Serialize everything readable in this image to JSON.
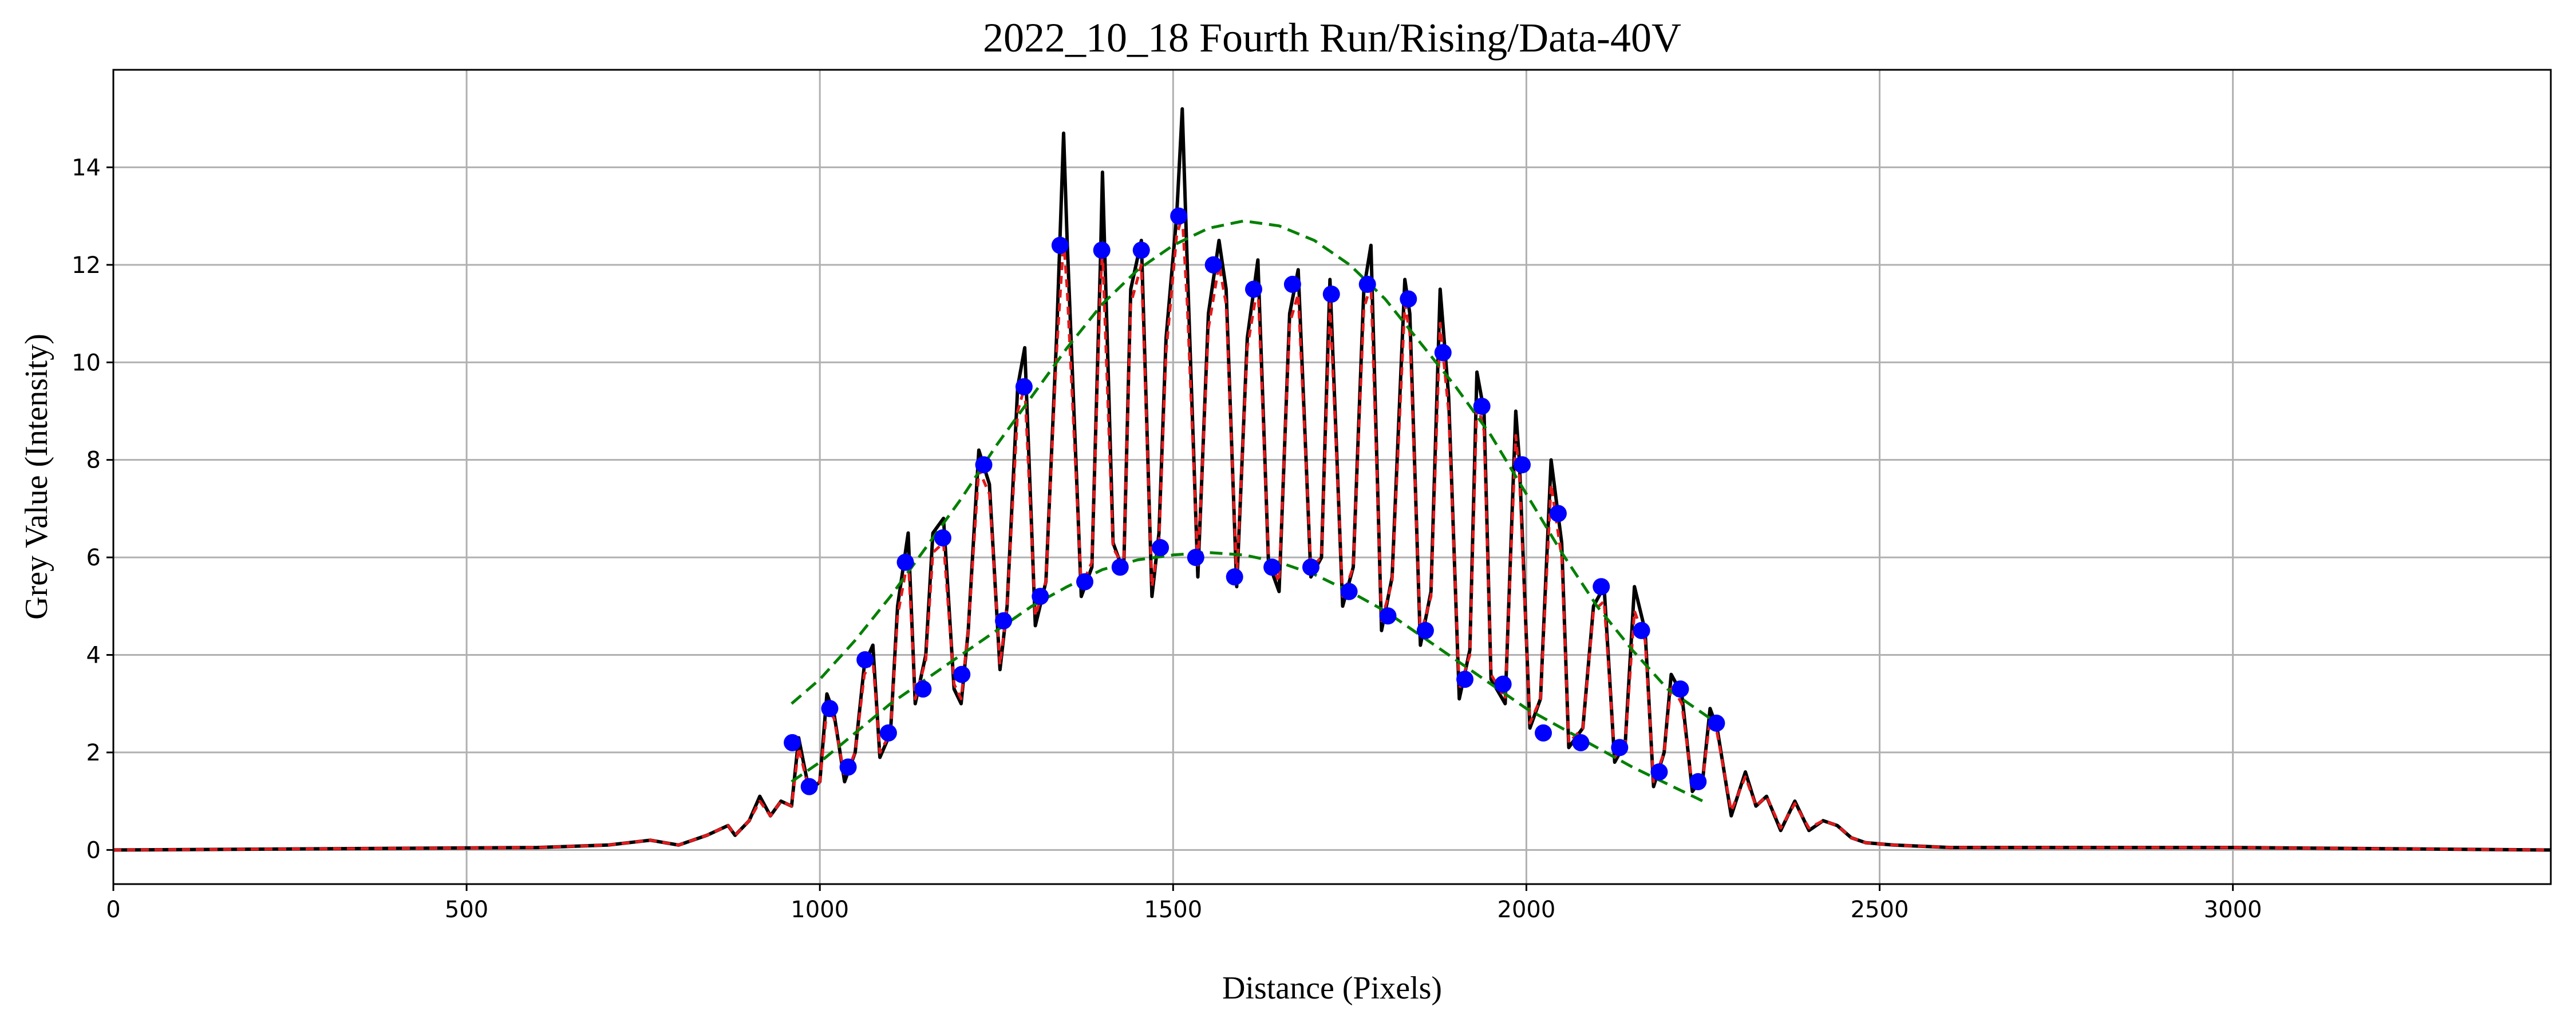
{
  "chart_data": {
    "type": "line",
    "title": "2022_10_18 Fourth Run/Rising/Data-40V",
    "xlabel": "Distance (Pixels)",
    "ylabel": "Grey Value (Intensity)",
    "xlim": [
      0,
      3450
    ],
    "ylim": [
      -0.7,
      16
    ],
    "grid": true,
    "x_ticks": [
      0,
      500,
      1000,
      1500,
      2000,
      2500,
      3000
    ],
    "y_ticks": [
      0,
      2,
      4,
      6,
      8,
      10,
      12,
      14
    ],
    "colors": {
      "raw": "#000000",
      "smoothed": "#e41a1c",
      "fit": "#008000",
      "peaks": "#0000ff",
      "grid": "#b0b0b0"
    },
    "series": [
      {
        "type": "line",
        "x": [
          0,
          600,
          700,
          760,
          800,
          840,
          870,
          880,
          900,
          915,
          930,
          945,
          960,
          970,
          985,
          1000,
          1010,
          1020,
          1035,
          1050,
          1063,
          1075,
          1085,
          1100,
          1110,
          1125,
          1135,
          1150,
          1160,
          1175,
          1190,
          1200,
          1210,
          1225,
          1240,
          1255,
          1265,
          1280,
          1290,
          1305,
          1320,
          1335,
          1345,
          1350,
          1370,
          1385,
          1397,
          1400,
          1415,
          1430,
          1440,
          1455,
          1470,
          1480,
          1490,
          1505,
          1513,
          1520,
          1535,
          1550,
          1565,
          1575,
          1590,
          1605,
          1620,
          1635,
          1650,
          1665,
          1677,
          1695,
          1710,
          1722,
          1740,
          1755,
          1770,
          1780,
          1795,
          1810,
          1828,
          1835,
          1850,
          1865,
          1878,
          1890,
          1905,
          1920,
          1930,
          1940,
          1950,
          1970,
          1985,
          1990,
          2005,
          2020,
          2035,
          2050,
          2060,
          2080,
          2095,
          2110,
          2125,
          2140,
          2153,
          2168,
          2180,
          2195,
          2205,
          2220,
          2235,
          2250,
          2260,
          2270,
          2290,
          2310,
          2325,
          2340,
          2360,
          2380,
          2400,
          2420,
          2440,
          2460,
          2480,
          2520,
          2600,
          3000,
          3450
        ],
        "y": [
          0,
          0.05,
          0.1,
          0.2,
          0.1,
          0.3,
          0.5,
          0.3,
          0.6,
          1.1,
          0.7,
          1.0,
          0.9,
          2.3,
          1.2,
          1.4,
          3.2,
          2.8,
          1.4,
          2.0,
          3.8,
          4.2,
          1.9,
          2.4,
          5.0,
          6.5,
          3.0,
          4.0,
          6.5,
          6.8,
          3.3,
          3.0,
          4.5,
          8.2,
          7.5,
          3.7,
          5.0,
          9.5,
          10.3,
          4.6,
          5.5,
          10.5,
          14.7,
          12.5,
          5.2,
          5.8,
          12.0,
          13.9,
          6.3,
          5.7,
          11.5,
          12.5,
          5.2,
          6.5,
          10.5,
          13.0,
          15.2,
          12.0,
          5.6,
          11.0,
          12.5,
          11.5,
          5.4,
          10.5,
          12.1,
          5.9,
          5.3,
          11.0,
          11.9,
          5.6,
          6.0,
          11.7,
          5.0,
          5.8,
          11.5,
          12.4,
          4.5,
          5.6,
          11.7,
          11.0,
          4.2,
          5.3,
          11.5,
          9.3,
          3.1,
          4.1,
          9.8,
          9.0,
          3.5,
          3.0,
          9.0,
          8.0,
          2.5,
          3.1,
          8.0,
          6.3,
          2.1,
          2.5,
          5.0,
          5.4,
          1.8,
          2.2,
          5.4,
          4.5,
          1.3,
          2.0,
          3.6,
          3.2,
          1.2,
          1.5,
          2.9,
          2.5,
          0.7,
          1.6,
          0.9,
          1.1,
          0.4,
          1.0,
          0.4,
          0.6,
          0.5,
          0.25,
          0.15,
          0.1,
          0.05,
          0.05,
          0
        ]
      },
      {
        "type": "line",
        "x": [
          0,
          600,
          700,
          760,
          800,
          840,
          870,
          880,
          900,
          915,
          930,
          945,
          960,
          970,
          985,
          1000,
          1010,
          1020,
          1035,
          1050,
          1063,
          1075,
          1085,
          1100,
          1110,
          1125,
          1135,
          1150,
          1160,
          1175,
          1190,
          1200,
          1210,
          1225,
          1240,
          1255,
          1265,
          1280,
          1290,
          1305,
          1320,
          1335,
          1345,
          1350,
          1370,
          1385,
          1397,
          1400,
          1415,
          1430,
          1440,
          1455,
          1470,
          1480,
          1490,
          1505,
          1513,
          1520,
          1535,
          1550,
          1565,
          1575,
          1590,
          1605,
          1620,
          1635,
          1650,
          1665,
          1677,
          1695,
          1710,
          1722,
          1740,
          1755,
          1770,
          1780,
          1795,
          1810,
          1828,
          1835,
          1850,
          1865,
          1878,
          1890,
          1905,
          1920,
          1930,
          1940,
          1950,
          1970,
          1985,
          1990,
          2005,
          2020,
          2035,
          2050,
          2060,
          2080,
          2095,
          2110,
          2125,
          2140,
          2153,
          2168,
          2180,
          2195,
          2205,
          2220,
          2235,
          2250,
          2260,
          2270,
          2290,
          2310,
          2325,
          2340,
          2360,
          2380,
          2400,
          2420,
          2440,
          2460,
          2480,
          2520,
          2600,
          3000,
          3450
        ],
        "y": [
          0,
          0.05,
          0.1,
          0.2,
          0.1,
          0.3,
          0.5,
          0.3,
          0.6,
          1.0,
          0.7,
          1.0,
          0.9,
          2.1,
          1.2,
          1.4,
          2.9,
          2.7,
          1.5,
          2.0,
          3.6,
          3.9,
          2.0,
          2.4,
          4.8,
          6.0,
          3.1,
          3.9,
          6.1,
          6.3,
          3.4,
          3.1,
          4.5,
          7.8,
          7.3,
          3.8,
          5.0,
          9.0,
          9.5,
          4.8,
          5.5,
          10.2,
          12.5,
          11.5,
          5.4,
          5.9,
          11.5,
          12.3,
          6.2,
          5.8,
          11.2,
          12.0,
          5.4,
          6.3,
          10.2,
          12.6,
          13.0,
          11.2,
          5.8,
          10.7,
          12.0,
          11.2,
          5.6,
          10.3,
          11.6,
          6.0,
          5.5,
          10.8,
          11.4,
          5.8,
          6.0,
          11.2,
          5.2,
          5.8,
          11.1,
          11.6,
          4.7,
          5.5,
          11.2,
          10.6,
          4.4,
          5.2,
          10.8,
          9.0,
          3.3,
          4.0,
          9.2,
          8.6,
          3.6,
          3.1,
          8.5,
          7.7,
          2.6,
          3.1,
          7.5,
          6.0,
          2.2,
          2.5,
          4.9,
          5.1,
          1.9,
          2.2,
          4.9,
          4.3,
          1.4,
          2.0,
          3.4,
          3.0,
          1.3,
          1.5,
          2.7,
          2.4,
          0.8,
          1.5,
          0.9,
          1.1,
          0.45,
          0.95,
          0.45,
          0.6,
          0.5,
          0.25,
          0.15,
          0.1,
          0.05,
          0.05,
          0
        ]
      },
      {
        "type": "line",
        "x": [
          960,
          1000,
          1050,
          1100,
          1150,
          1200,
          1250,
          1300,
          1350,
          1400,
          1450,
          1500,
          1550,
          1600,
          1650,
          1700,
          1750,
          1800,
          1850,
          1900,
          1950,
          2000,
          2050,
          2100,
          2150,
          2200,
          2250,
          2270
        ],
        "y": [
          3.0,
          3.5,
          4.3,
          5.2,
          6.2,
          7.2,
          8.3,
          9.3,
          10.3,
          11.2,
          11.9,
          12.4,
          12.75,
          12.9,
          12.8,
          12.5,
          12.0,
          11.3,
          10.4,
          9.5,
          8.5,
          7.3,
          6.1,
          5.0,
          4.1,
          3.3,
          2.8,
          2.6
        ]
      },
      {
        "type": "line",
        "x": [
          960,
          1000,
          1050,
          1100,
          1150,
          1200,
          1250,
          1300,
          1350,
          1400,
          1450,
          1500,
          1550,
          1600,
          1650,
          1700,
          1750,
          1800,
          1850,
          1900,
          1950,
          2000,
          2050,
          2100,
          2150,
          2200,
          2250
        ],
        "y": [
          1.4,
          1.8,
          2.4,
          3.0,
          3.5,
          4.0,
          4.5,
          5.0,
          5.4,
          5.75,
          5.95,
          6.05,
          6.1,
          6.05,
          5.9,
          5.65,
          5.3,
          4.9,
          4.4,
          3.9,
          3.4,
          2.9,
          2.5,
          2.1,
          1.7,
          1.35,
          1.0
        ]
      },
      {
        "type": "scatter",
        "x": [
          961,
          1014,
          1064,
          1121,
          1174,
          1232,
          1289,
          1340,
          1399,
          1455,
          1508,
          1557,
          1614,
          1669,
          1724,
          1775,
          1833,
          1882,
          1937,
          1994,
          2045,
          2106,
          2163,
          2218,
          2269,
          985,
          1040,
          1097,
          1146,
          1201,
          1260,
          1312,
          1375,
          1425,
          1482,
          1532,
          1587,
          1640,
          1695,
          1749,
          1804,
          1857,
          1913,
          1967,
          2024,
          2077,
          2132,
          2188,
          2243
        ],
        "y": [
          2.2,
          2.9,
          3.9,
          5.9,
          6.4,
          7.9,
          9.5,
          12.4,
          12.3,
          12.3,
          13.0,
          12.0,
          11.5,
          11.6,
          11.4,
          11.6,
          11.3,
          10.2,
          9.1,
          7.9,
          6.9,
          5.4,
          4.5,
          3.3,
          2.6,
          1.3,
          1.7,
          2.4,
          3.3,
          3.6,
          4.7,
          5.2,
          5.5,
          5.8,
          6.2,
          6.0,
          5.6,
          5.8,
          5.8,
          5.3,
          4.8,
          4.5,
          3.5,
          3.4,
          2.4,
          2.2,
          2.1,
          1.6,
          1.4
        ]
      }
    ]
  }
}
